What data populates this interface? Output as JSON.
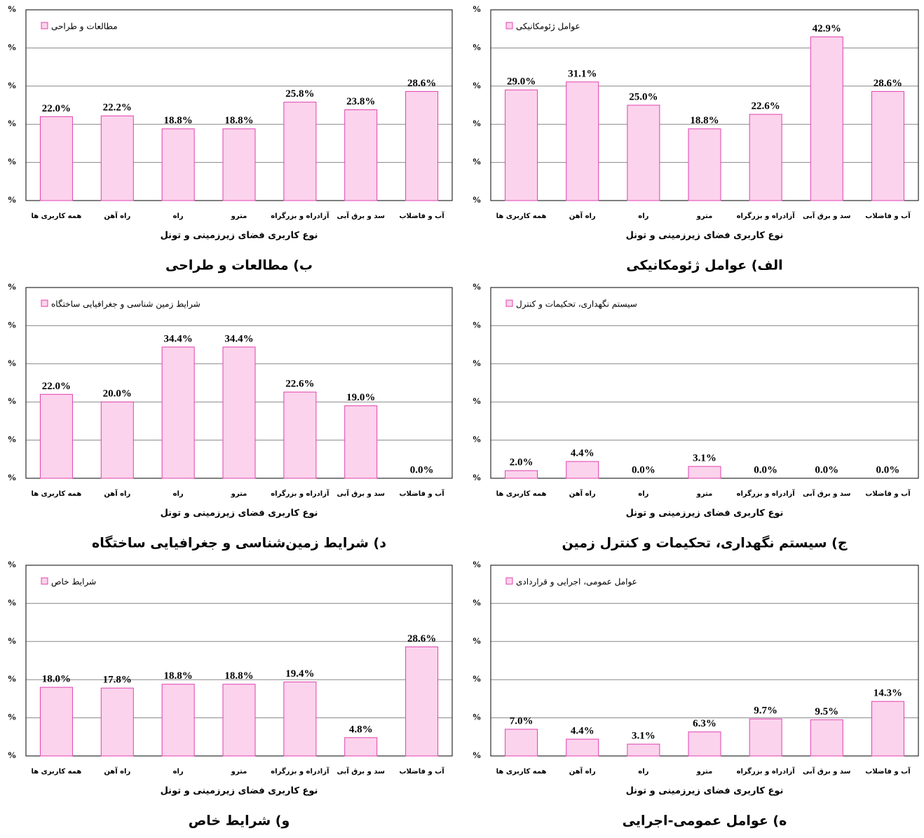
{
  "chart_data": [
    {
      "type": "bar",
      "title": "الف) عوامل ژئومکانیکی",
      "x_label": "نوع کاربری فضای زیرزمینی و تونل",
      "categories": [
        "همه کاربری ها",
        "راه آهن",
        "راه",
        "مترو",
        "آزادراه و بزرگراه",
        "سد و برق آبی",
        "آب و فاضلاب"
      ],
      "series": [
        {
          "name": "عوامل ژئومکانیکی",
          "color": "#fcd3ec",
          "values": [
            29.0,
            31.1,
            25.0,
            18.8,
            22.6,
            42.9,
            28.6
          ],
          "value_labels": [
            "29.0%",
            "31.1%",
            "25.0%",
            "18.8%",
            "22.6%",
            "42.9%",
            "28.6%"
          ]
        }
      ],
      "ylim": [
        0,
        50
      ],
      "yticks": [
        {
          "value": 0,
          "label": "%"
        },
        {
          "value": 10,
          "label": "%"
        },
        {
          "value": 20,
          "label": "%"
        },
        {
          "value": 30,
          "label": "%"
        },
        {
          "value": 40,
          "label": "%"
        },
        {
          "value": 50,
          "label": "%"
        }
      ],
      "grid": true
    },
    {
      "type": "bar",
      "title": "ب) مطالعات و طراحی",
      "x_label": "نوع کاربری فضای زیرزمینی و تونل",
      "categories": [
        "همه کاربری ها",
        "راه آهن",
        "راه",
        "مترو",
        "آزادراه و بزرگراه",
        "سد و برق آبی",
        "آب و فاضلاب"
      ],
      "series": [
        {
          "name": "مطالعات و طراحی",
          "color": "#fcd3ec",
          "values": [
            22.0,
            22.2,
            18.8,
            18.8,
            25.8,
            23.8,
            28.6
          ],
          "value_labels": [
            "22.0%",
            "22.2%",
            "18.8%",
            "18.8%",
            "25.8%",
            "23.8%",
            "28.6%"
          ]
        }
      ],
      "ylim": [
        0,
        50
      ],
      "yticks": [
        {
          "value": 0,
          "label": "%"
        },
        {
          "value": 10,
          "label": "%"
        },
        {
          "value": 20,
          "label": "%"
        },
        {
          "value": 30,
          "label": "%"
        },
        {
          "value": 40,
          "label": "%"
        },
        {
          "value": 50,
          "label": "%"
        }
      ],
      "grid": true
    },
    {
      "type": "bar",
      "title": "ج) سیستم نگهداری، تحکیمات و کنترل زمین",
      "x_label": "نوع کاربری فضای زیرزمینی و تونل",
      "categories": [
        "همه کاربری ها",
        "راه آهن",
        "راه",
        "مترو",
        "آزادراه و بزرگراه",
        "سد و برق آبی",
        "آب و فاضلاب"
      ],
      "series": [
        {
          "name": "سیستم نگهداری، تحکیمات و کنترل",
          "color": "#fcd3ec",
          "values": [
            2.0,
            4.4,
            0.0,
            3.1,
            0.0,
            0.0,
            0.0
          ],
          "value_labels": [
            "2.0%",
            "4.4%",
            "0.0%",
            "3.1%",
            "0.0%",
            "0.0%",
            "0.0%"
          ]
        }
      ],
      "ylim": [
        0,
        50
      ],
      "yticks": [
        {
          "value": 0,
          "label": "%"
        },
        {
          "value": 10,
          "label": "%"
        },
        {
          "value": 20,
          "label": "%"
        },
        {
          "value": 30,
          "label": "%"
        },
        {
          "value": 40,
          "label": "%"
        },
        {
          "value": 50,
          "label": "%"
        }
      ],
      "grid": true
    },
    {
      "type": "bar",
      "title": "د) شرایط زمین‌شناسی و جغرافیایی ساختگاه",
      "x_label": "نوع کاربری فضای زیرزمینی و تونل",
      "categories": [
        "همه کاربری ها",
        "راه آهن",
        "راه",
        "مترو",
        "آزادراه و بزرگراه",
        "سد و برق آبی",
        "آب و فاضلاب"
      ],
      "series": [
        {
          "name": "شرایط زمین شناسی و جغرافیایی ساختگاه",
          "color": "#fcd3ec",
          "values": [
            22.0,
            20.0,
            34.4,
            34.4,
            22.6,
            19.0,
            0.0
          ],
          "value_labels": [
            "22.0%",
            "20.0%",
            "34.4%",
            "34.4%",
            "22.6%",
            "19.0%",
            "0.0%"
          ]
        }
      ],
      "ylim": [
        0,
        50
      ],
      "yticks": [
        {
          "value": 0,
          "label": "%"
        },
        {
          "value": 10,
          "label": "%"
        },
        {
          "value": 20,
          "label": "%"
        },
        {
          "value": 30,
          "label": "%"
        },
        {
          "value": 40,
          "label": "%"
        },
        {
          "value": 50,
          "label": "%"
        }
      ],
      "grid": true
    },
    {
      "type": "bar",
      "title": "ه) عوامل عمومی-اجرایی",
      "x_label": "نوع کاربری فضای زیرزمینی و تونل",
      "categories": [
        "همه کاربری ها",
        "راه آهن",
        "راه",
        "مترو",
        "آزادراه و بزرگراه",
        "سد و برق آبی",
        "آب و فاضلاب"
      ],
      "series": [
        {
          "name": "عوامل عمومی، اجرایی و قراردادی",
          "color": "#fcd3ec",
          "values": [
            7.0,
            4.4,
            3.1,
            6.3,
            9.7,
            9.5,
            14.3
          ],
          "value_labels": [
            "7.0%",
            "4.4%",
            "3.1%",
            "6.3%",
            "9.7%",
            "9.5%",
            "14.3%"
          ]
        }
      ],
      "ylim": [
        0,
        50
      ],
      "yticks": [
        {
          "value": 0,
          "label": "%"
        },
        {
          "value": 10,
          "label": "%"
        },
        {
          "value": 20,
          "label": "%"
        },
        {
          "value": 30,
          "label": "%"
        },
        {
          "value": 40,
          "label": "%"
        },
        {
          "value": 50,
          "label": "%"
        }
      ],
      "grid": true
    },
    {
      "type": "bar",
      "title": "و) شرایط خاص",
      "x_label": "نوع کاربری فضای زیرزمینی و تونل",
      "categories": [
        "همه کاربری ها",
        "راه آهن",
        "راه",
        "مترو",
        "آزادراه و بزرگراه",
        "سد و برق آبی",
        "آب و فاضلاب"
      ],
      "series": [
        {
          "name": "شرایط خاص",
          "color": "#fcd3ec",
          "values": [
            18.0,
            17.8,
            18.8,
            18.8,
            19.4,
            4.8,
            28.6
          ],
          "value_labels": [
            "18.0%",
            "17.8%",
            "18.8%",
            "18.8%",
            "19.4%",
            "4.8%",
            "28.6%"
          ]
        }
      ],
      "ylim": [
        0,
        50
      ],
      "yticks": [
        {
          "value": 0,
          "label": "%"
        },
        {
          "value": 10,
          "label": "%"
        },
        {
          "value": 20,
          "label": "%"
        },
        {
          "value": 30,
          "label": "%"
        },
        {
          "value": 40,
          "label": "%"
        },
        {
          "value": 50,
          "label": "%"
        }
      ],
      "grid": true
    }
  ]
}
